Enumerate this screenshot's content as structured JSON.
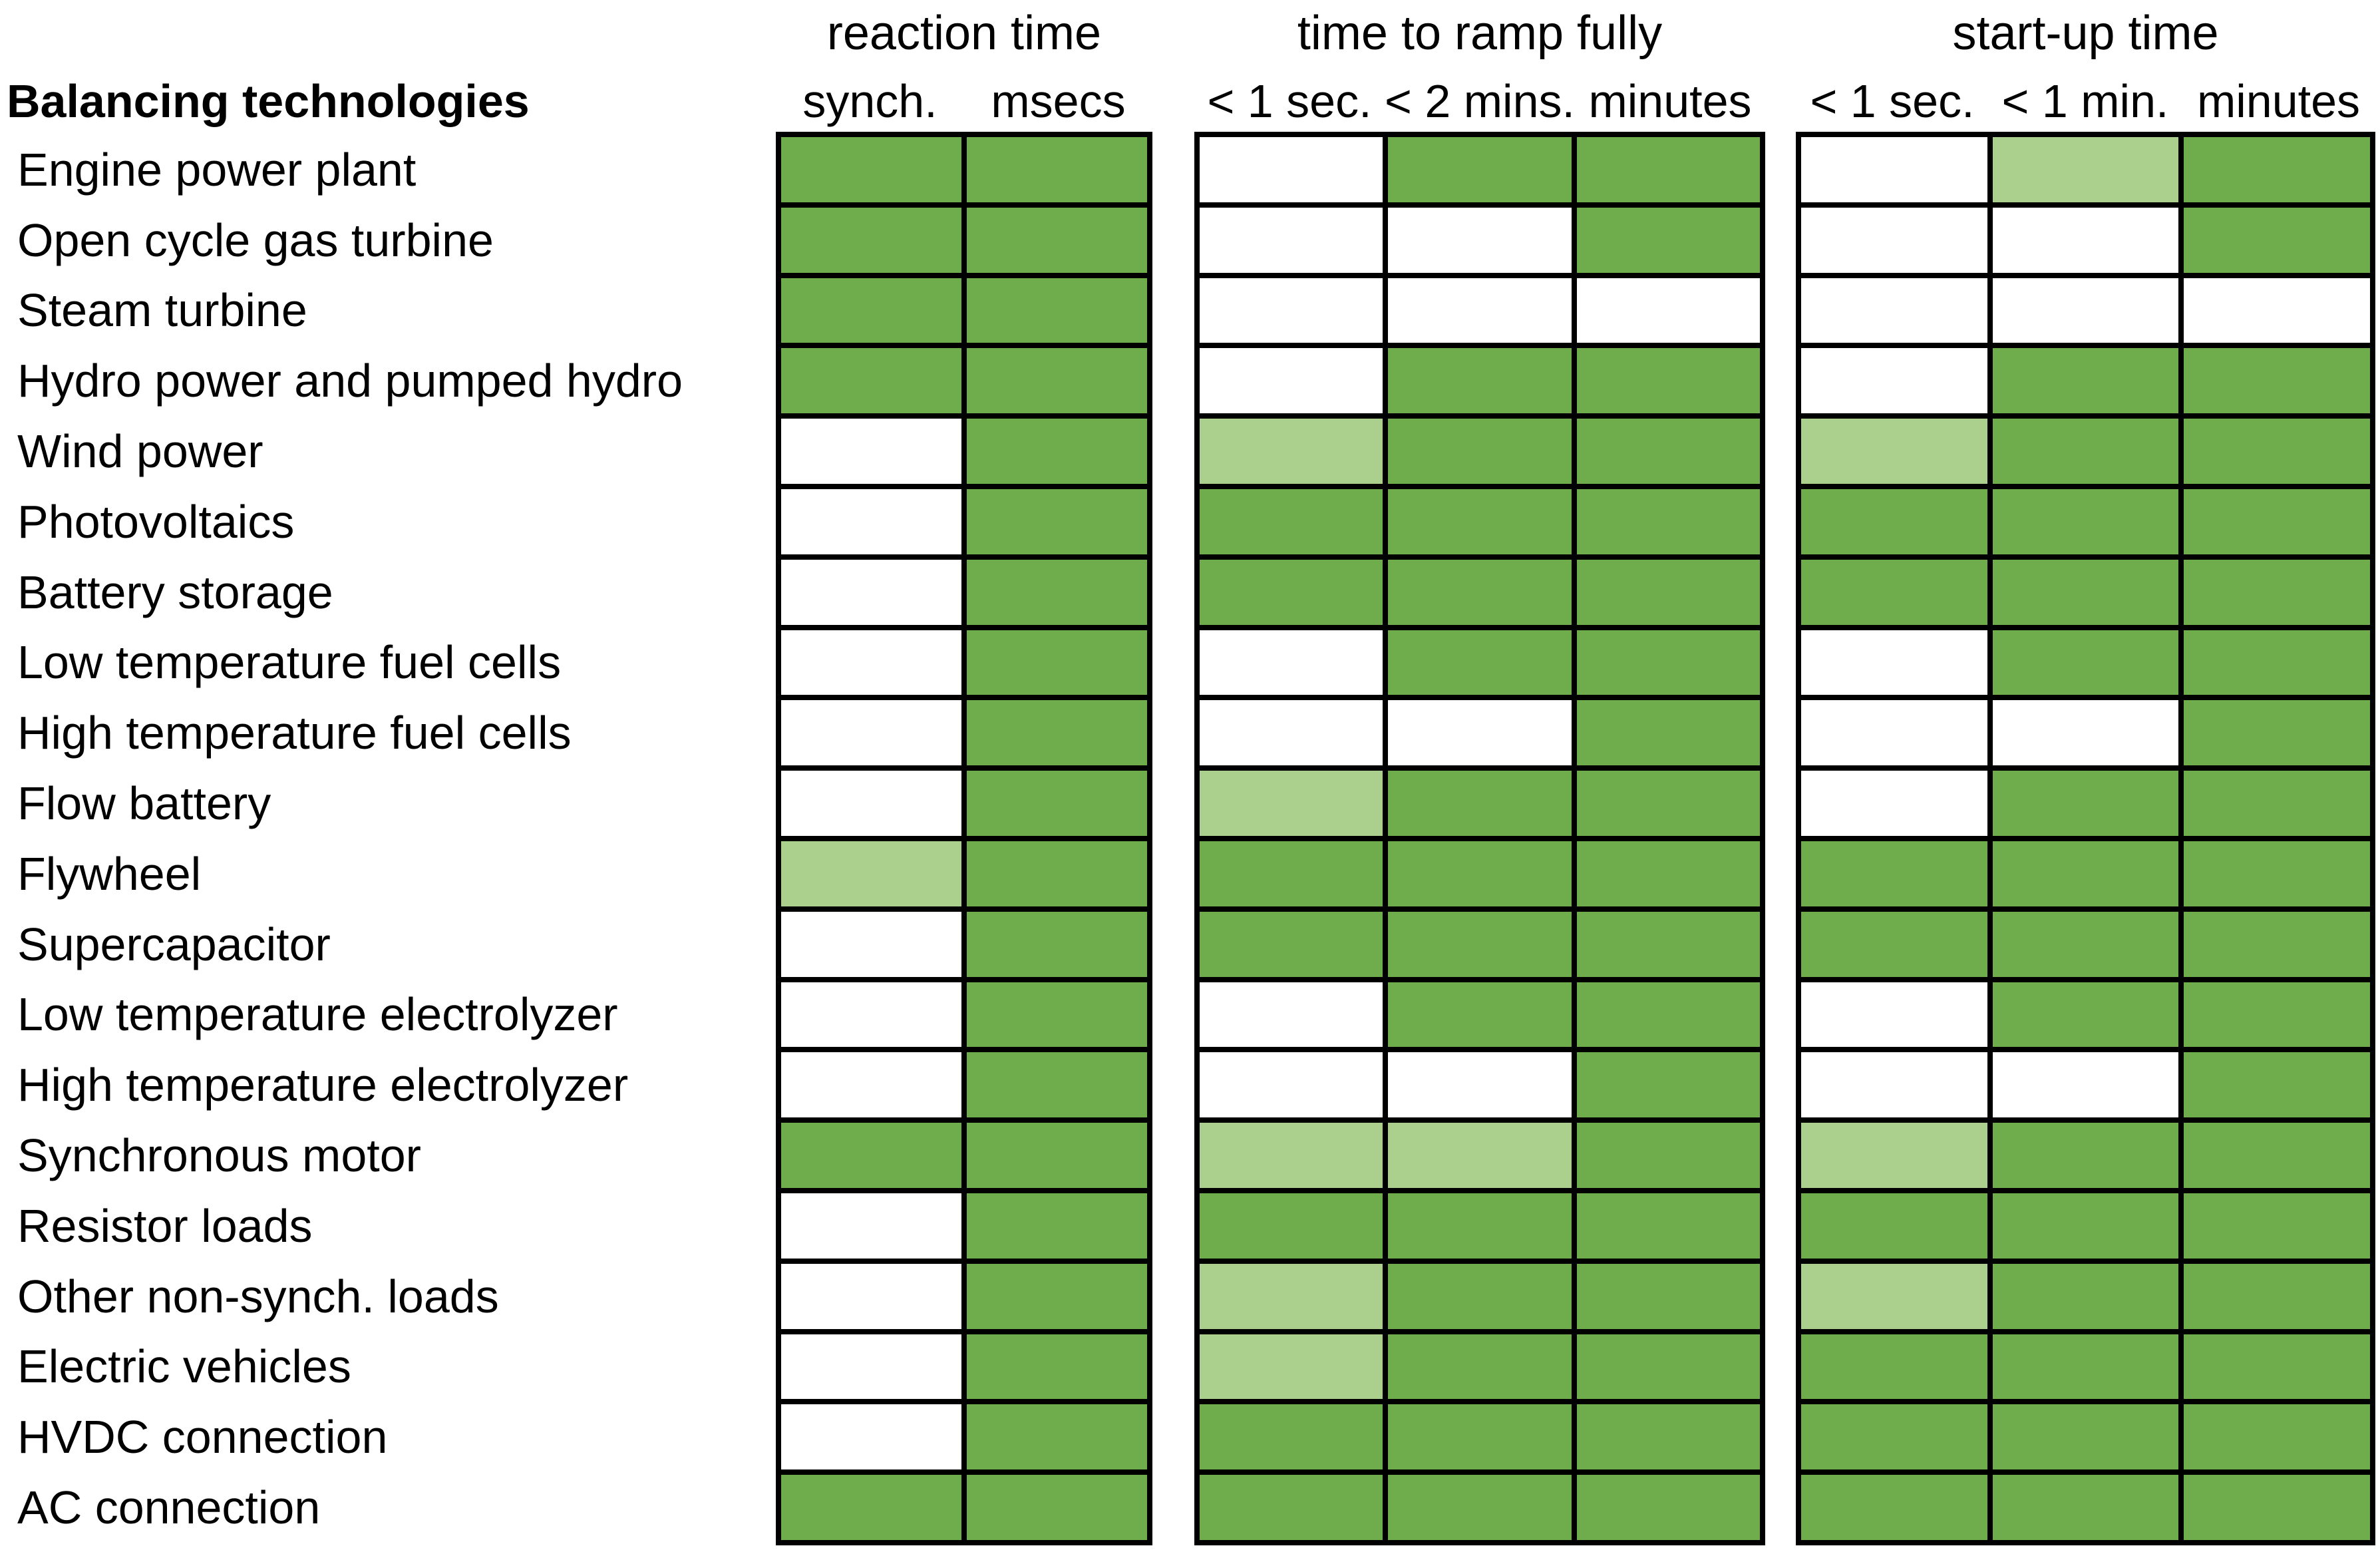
{
  "chart_data": {
    "type": "heatmap",
    "title": "Balancing technologies",
    "row_header": "Balancing technologies",
    "row_axis_label": "Balancing technologies",
    "legend_note": "cell states encode capability shading",
    "colors": {
      "full": "#6fac4b",
      "partial": "#abd08e",
      "none": "#ffffff",
      "border": "#000000"
    },
    "groups": [
      {
        "title": "reaction time",
        "columns": [
          "synch.",
          "msecs"
        ]
      },
      {
        "title": "time to ramp fully",
        "columns": [
          "< 1 sec.",
          "< 2 mins.",
          "minutes"
        ]
      },
      {
        "title": "start-up time",
        "columns": [
          "< 1 sec.",
          "< 1 min.",
          "minutes"
        ]
      }
    ],
    "rows": [
      {
        "label": "Engine power plant",
        "cells": [
          [
            "full",
            "full"
          ],
          [
            "none",
            "full",
            "full"
          ],
          [
            "none",
            "partial",
            "full"
          ]
        ]
      },
      {
        "label": "Open cycle gas turbine",
        "cells": [
          [
            "full",
            "full"
          ],
          [
            "none",
            "none",
            "full"
          ],
          [
            "none",
            "none",
            "full"
          ]
        ]
      },
      {
        "label": "Steam turbine",
        "cells": [
          [
            "full",
            "full"
          ],
          [
            "none",
            "none",
            "none"
          ],
          [
            "none",
            "none",
            "none"
          ]
        ]
      },
      {
        "label": "Hydro power and pumped hydro",
        "cells": [
          [
            "full",
            "full"
          ],
          [
            "none",
            "full",
            "full"
          ],
          [
            "none",
            "full",
            "full"
          ]
        ]
      },
      {
        "label": "Wind power",
        "cells": [
          [
            "none",
            "full"
          ],
          [
            "partial",
            "full",
            "full"
          ],
          [
            "partial",
            "full",
            "full"
          ]
        ]
      },
      {
        "label": "Photovoltaics",
        "cells": [
          [
            "none",
            "full"
          ],
          [
            "full",
            "full",
            "full"
          ],
          [
            "full",
            "full",
            "full"
          ]
        ]
      },
      {
        "label": "Battery storage",
        "cells": [
          [
            "none",
            "full"
          ],
          [
            "full",
            "full",
            "full"
          ],
          [
            "full",
            "full",
            "full"
          ]
        ]
      },
      {
        "label": "Low temperature fuel cells",
        "cells": [
          [
            "none",
            "full"
          ],
          [
            "none",
            "full",
            "full"
          ],
          [
            "none",
            "full",
            "full"
          ]
        ]
      },
      {
        "label": "High temperature fuel cells",
        "cells": [
          [
            "none",
            "full"
          ],
          [
            "none",
            "none",
            "full"
          ],
          [
            "none",
            "none",
            "full"
          ]
        ]
      },
      {
        "label": "Flow battery",
        "cells": [
          [
            "none",
            "full"
          ],
          [
            "partial",
            "full",
            "full"
          ],
          [
            "none",
            "full",
            "full"
          ]
        ]
      },
      {
        "label": "Flywheel",
        "cells": [
          [
            "partial",
            "full"
          ],
          [
            "full",
            "full",
            "full"
          ],
          [
            "full",
            "full",
            "full"
          ]
        ]
      },
      {
        "label": "Supercapacitor",
        "cells": [
          [
            "none",
            "full"
          ],
          [
            "full",
            "full",
            "full"
          ],
          [
            "full",
            "full",
            "full"
          ]
        ]
      },
      {
        "label": "Low temperature electrolyzer",
        "cells": [
          [
            "none",
            "full"
          ],
          [
            "none",
            "full",
            "full"
          ],
          [
            "none",
            "full",
            "full"
          ]
        ]
      },
      {
        "label": "High temperature electrolyzer",
        "cells": [
          [
            "none",
            "full"
          ],
          [
            "none",
            "none",
            "full"
          ],
          [
            "none",
            "none",
            "full"
          ]
        ]
      },
      {
        "label": "Synchronous motor",
        "cells": [
          [
            "full",
            "full"
          ],
          [
            "partial",
            "partial",
            "full"
          ],
          [
            "partial",
            "full",
            "full"
          ]
        ]
      },
      {
        "label": "Resistor loads",
        "cells": [
          [
            "none",
            "full"
          ],
          [
            "full",
            "full",
            "full"
          ],
          [
            "full",
            "full",
            "full"
          ]
        ]
      },
      {
        "label": "Other non-synch. loads",
        "cells": [
          [
            "none",
            "full"
          ],
          [
            "partial",
            "full",
            "full"
          ],
          [
            "partial",
            "full",
            "full"
          ]
        ]
      },
      {
        "label": "Electric vehicles",
        "cells": [
          [
            "none",
            "full"
          ],
          [
            "partial",
            "full",
            "full"
          ],
          [
            "full",
            "full",
            "full"
          ]
        ]
      },
      {
        "label": "HVDC connection",
        "cells": [
          [
            "none",
            "full"
          ],
          [
            "full",
            "full",
            "full"
          ],
          [
            "full",
            "full",
            "full"
          ]
        ]
      },
      {
        "label": "AC connection",
        "cells": [
          [
            "full",
            "full"
          ],
          [
            "full",
            "full",
            "full"
          ],
          [
            "full",
            "full",
            "full"
          ]
        ]
      }
    ]
  }
}
